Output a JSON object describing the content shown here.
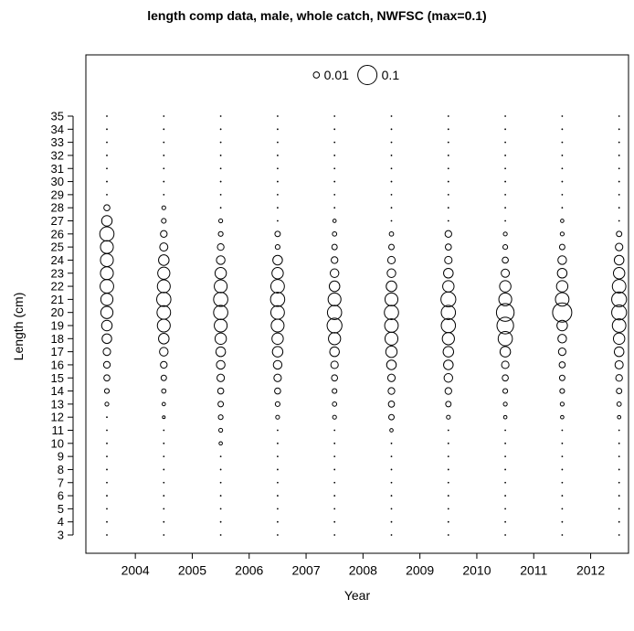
{
  "chart_data": {
    "type": "scatter",
    "subtype": "bubble",
    "title": "length comp data, male, whole catch, NWFSC (max=0.1)",
    "xlabel": "Year",
    "ylabel": "Length (cm)",
    "x_ticks": [
      2004,
      2005,
      2006,
      2007,
      2008,
      2009,
      2010,
      2011,
      2012
    ],
    "y_ticks": [
      3,
      4,
      5,
      6,
      7,
      8,
      9,
      10,
      11,
      12,
      13,
      14,
      15,
      16,
      17,
      18,
      19,
      20,
      21,
      22,
      23,
      24,
      25,
      26,
      27,
      28,
      29,
      30,
      31,
      32,
      33,
      34,
      35
    ],
    "legend": {
      "placement": "top-center",
      "entries": [
        {
          "label": "0.01",
          "value": 0.01
        },
        {
          "label": "0.1",
          "value": 0.1
        }
      ]
    },
    "max_value": 0.1,
    "grid": false,
    "series": [
      {
        "year": 2003.5,
        "values": [
          {
            "length": 28,
            "value": 0.01
          },
          {
            "length": 27,
            "value": 0.03
          },
          {
            "length": 26,
            "value": 0.055
          },
          {
            "length": 25,
            "value": 0.045
          },
          {
            "length": 24,
            "value": 0.045
          },
          {
            "length": 23,
            "value": 0.045
          },
          {
            "length": 22,
            "value": 0.05
          },
          {
            "length": 21,
            "value": 0.04
          },
          {
            "length": 20,
            "value": 0.04
          },
          {
            "length": 19,
            "value": 0.03
          },
          {
            "length": 18,
            "value": 0.025
          },
          {
            "length": 17,
            "value": 0.015
          },
          {
            "length": 16,
            "value": 0.012
          },
          {
            "length": 15,
            "value": 0.01
          },
          {
            "length": 14,
            "value": 0.006
          },
          {
            "length": 13,
            "value": 0.004
          }
        ]
      },
      {
        "year": 2004.5,
        "values": [
          {
            "length": 28,
            "value": 0.004
          },
          {
            "length": 27,
            "value": 0.006
          },
          {
            "length": 26,
            "value": 0.012
          },
          {
            "length": 25,
            "value": 0.018
          },
          {
            "length": 24,
            "value": 0.03
          },
          {
            "length": 23,
            "value": 0.04
          },
          {
            "length": 22,
            "value": 0.045
          },
          {
            "length": 21,
            "value": 0.055
          },
          {
            "length": 20,
            "value": 0.05
          },
          {
            "length": 19,
            "value": 0.045
          },
          {
            "length": 18,
            "value": 0.03
          },
          {
            "length": 17,
            "value": 0.02
          },
          {
            "length": 16,
            "value": 0.012
          },
          {
            "length": 15,
            "value": 0.008
          },
          {
            "length": 14,
            "value": 0.005
          },
          {
            "length": 13,
            "value": 0.003
          },
          {
            "length": 12,
            "value": 0.002
          }
        ]
      },
      {
        "year": 2005.5,
        "values": [
          {
            "length": 27,
            "value": 0.004
          },
          {
            "length": 26,
            "value": 0.006
          },
          {
            "length": 25,
            "value": 0.012
          },
          {
            "length": 24,
            "value": 0.02
          },
          {
            "length": 23,
            "value": 0.035
          },
          {
            "length": 22,
            "value": 0.045
          },
          {
            "length": 21,
            "value": 0.055
          },
          {
            "length": 20,
            "value": 0.055
          },
          {
            "length": 19,
            "value": 0.045
          },
          {
            "length": 18,
            "value": 0.035
          },
          {
            "length": 17,
            "value": 0.025
          },
          {
            "length": 16,
            "value": 0.02
          },
          {
            "length": 15,
            "value": 0.015
          },
          {
            "length": 14,
            "value": 0.01
          },
          {
            "length": 13,
            "value": 0.008
          },
          {
            "length": 12,
            "value": 0.006
          },
          {
            "length": 11,
            "value": 0.004
          },
          {
            "length": 10,
            "value": 0.003
          }
        ]
      },
      {
        "year": 2006.5,
        "values": [
          {
            "length": 26,
            "value": 0.008
          },
          {
            "length": 25,
            "value": 0.006
          },
          {
            "length": 24,
            "value": 0.025
          },
          {
            "length": 23,
            "value": 0.035
          },
          {
            "length": 22,
            "value": 0.05
          },
          {
            "length": 21,
            "value": 0.055
          },
          {
            "length": 20,
            "value": 0.05
          },
          {
            "length": 19,
            "value": 0.045
          },
          {
            "length": 18,
            "value": 0.035
          },
          {
            "length": 17,
            "value": 0.03
          },
          {
            "length": 16,
            "value": 0.02
          },
          {
            "length": 15,
            "value": 0.015
          },
          {
            "length": 14,
            "value": 0.01
          },
          {
            "length": 13,
            "value": 0.006
          },
          {
            "length": 12,
            "value": 0.004
          }
        ]
      },
      {
        "year": 2007.5,
        "values": [
          {
            "length": 27,
            "value": 0.003
          },
          {
            "length": 26,
            "value": 0.005
          },
          {
            "length": 25,
            "value": 0.008
          },
          {
            "length": 24,
            "value": 0.012
          },
          {
            "length": 23,
            "value": 0.02
          },
          {
            "length": 22,
            "value": 0.03
          },
          {
            "length": 21,
            "value": 0.045
          },
          {
            "length": 20,
            "value": 0.055
          },
          {
            "length": 19,
            "value": 0.06
          },
          {
            "length": 18,
            "value": 0.04
          },
          {
            "length": 17,
            "value": 0.025
          },
          {
            "length": 16,
            "value": 0.015
          },
          {
            "length": 15,
            "value": 0.01
          },
          {
            "length": 14,
            "value": 0.006
          },
          {
            "length": 13,
            "value": 0.005
          },
          {
            "length": 12,
            "value": 0.004
          }
        ]
      },
      {
        "year": 2008.5,
        "values": [
          {
            "length": 26,
            "value": 0.005
          },
          {
            "length": 25,
            "value": 0.008
          },
          {
            "length": 24,
            "value": 0.015
          },
          {
            "length": 23,
            "value": 0.02
          },
          {
            "length": 22,
            "value": 0.03
          },
          {
            "length": 21,
            "value": 0.045
          },
          {
            "length": 20,
            "value": 0.055
          },
          {
            "length": 19,
            "value": 0.05
          },
          {
            "length": 18,
            "value": 0.045
          },
          {
            "length": 17,
            "value": 0.035
          },
          {
            "length": 16,
            "value": 0.025
          },
          {
            "length": 15,
            "value": 0.015
          },
          {
            "length": 14,
            "value": 0.012
          },
          {
            "length": 13,
            "value": 0.01
          },
          {
            "length": 12,
            "value": 0.008
          },
          {
            "length": 11,
            "value": 0.003
          }
        ]
      },
      {
        "year": 2009.5,
        "values": [
          {
            "length": 26,
            "value": 0.012
          },
          {
            "length": 25,
            "value": 0.01
          },
          {
            "length": 24,
            "value": 0.015
          },
          {
            "length": 23,
            "value": 0.025
          },
          {
            "length": 22,
            "value": 0.035
          },
          {
            "length": 21,
            "value": 0.06
          },
          {
            "length": 20,
            "value": 0.055
          },
          {
            "length": 19,
            "value": 0.055
          },
          {
            "length": 18,
            "value": 0.04
          },
          {
            "length": 17,
            "value": 0.03
          },
          {
            "length": 16,
            "value": 0.025
          },
          {
            "length": 15,
            "value": 0.02
          },
          {
            "length": 14,
            "value": 0.012
          },
          {
            "length": 13,
            "value": 0.008
          },
          {
            "length": 12,
            "value": 0.004
          }
        ]
      },
      {
        "year": 2010.5,
        "values": [
          {
            "length": 26,
            "value": 0.004
          },
          {
            "length": 25,
            "value": 0.006
          },
          {
            "length": 24,
            "value": 0.01
          },
          {
            "length": 23,
            "value": 0.018
          },
          {
            "length": 22,
            "value": 0.035
          },
          {
            "length": 21,
            "value": 0.045
          },
          {
            "length": 20,
            "value": 0.085
          },
          {
            "length": 19,
            "value": 0.075
          },
          {
            "length": 18,
            "value": 0.055
          },
          {
            "length": 17,
            "value": 0.03
          },
          {
            "length": 16,
            "value": 0.015
          },
          {
            "length": 15,
            "value": 0.01
          },
          {
            "length": 14,
            "value": 0.006
          },
          {
            "length": 13,
            "value": 0.004
          },
          {
            "length": 12,
            "value": 0.003
          }
        ]
      },
      {
        "year": 2011.5,
        "values": [
          {
            "length": 27,
            "value": 0.003
          },
          {
            "length": 26,
            "value": 0.004
          },
          {
            "length": 25,
            "value": 0.008
          },
          {
            "length": 24,
            "value": 0.02
          },
          {
            "length": 23,
            "value": 0.025
          },
          {
            "length": 22,
            "value": 0.035
          },
          {
            "length": 21,
            "value": 0.05
          },
          {
            "length": 20,
            "value": 0.1
          },
          {
            "length": 19,
            "value": 0.03
          },
          {
            "length": 18,
            "value": 0.02
          },
          {
            "length": 17,
            "value": 0.015
          },
          {
            "length": 16,
            "value": 0.01
          },
          {
            "length": 15,
            "value": 0.008
          },
          {
            "length": 14,
            "value": 0.006
          },
          {
            "length": 13,
            "value": 0.004
          },
          {
            "length": 12,
            "value": 0.003
          }
        ]
      },
      {
        "year": 2012.5,
        "values": [
          {
            "length": 26,
            "value": 0.008
          },
          {
            "length": 25,
            "value": 0.015
          },
          {
            "length": 24,
            "value": 0.025
          },
          {
            "length": 23,
            "value": 0.035
          },
          {
            "length": 22,
            "value": 0.05
          },
          {
            "length": 21,
            "value": 0.06
          },
          {
            "length": 20,
            "value": 0.06
          },
          {
            "length": 19,
            "value": 0.05
          },
          {
            "length": 18,
            "value": 0.035
          },
          {
            "length": 17,
            "value": 0.025
          },
          {
            "length": 16,
            "value": 0.018
          },
          {
            "length": 15,
            "value": 0.012
          },
          {
            "length": 14,
            "value": 0.008
          },
          {
            "length": 13,
            "value": 0.005
          },
          {
            "length": 12,
            "value": 0.003
          }
        ]
      }
    ]
  }
}
